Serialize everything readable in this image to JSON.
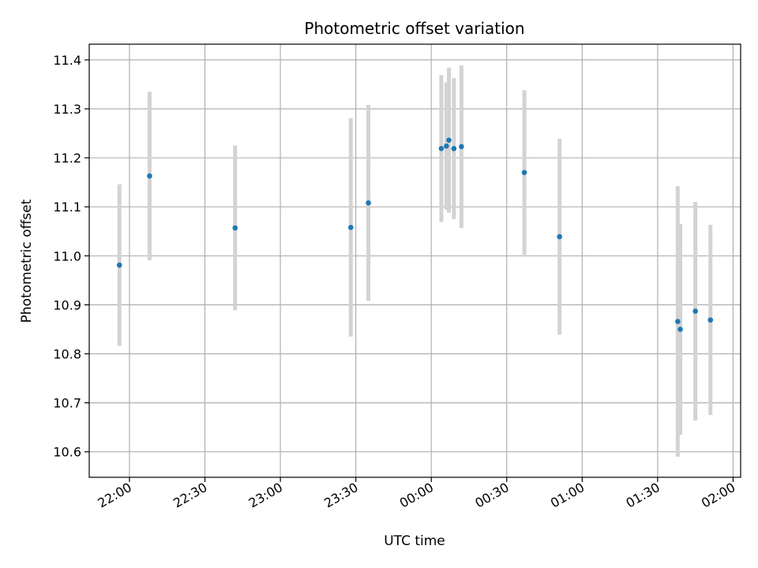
{
  "chart_data": {
    "type": "scatter",
    "title": "Photometric offset variation",
    "xlabel": "UTC time",
    "ylabel": "Photometric offset",
    "x_axis_type": "time",
    "xlim": [
      "21:44",
      "02:03"
    ],
    "ylim": [
      10.548,
      11.432
    ],
    "x_ticks": [
      "22:00",
      "22:30",
      "23:00",
      "23:30",
      "00:00",
      "00:30",
      "01:00",
      "01:30",
      "02:00"
    ],
    "y_ticks": [
      "10.6",
      "10.7",
      "10.8",
      "10.9",
      "11.0",
      "11.1",
      "11.2",
      "11.3",
      "11.4"
    ],
    "grid": true,
    "point_color": "#1f77b4",
    "errorbar_color": "#d3d3d3",
    "points": [
      {
        "time": "21:56",
        "y": 10.981,
        "yerr": 0.165
      },
      {
        "time": "22:08",
        "y": 11.163,
        "yerr": 0.172
      },
      {
        "time": "22:42",
        "y": 11.057,
        "yerr": 0.168
      },
      {
        "time": "23:28",
        "y": 11.058,
        "yerr": 0.223
      },
      {
        "time": "23:35",
        "y": 11.108,
        "yerr": 0.2
      },
      {
        "time": "00:04",
        "y": 11.219,
        "yerr": 0.15
      },
      {
        "time": "00:06",
        "y": 11.224,
        "yerr": 0.13
      },
      {
        "time": "00:07",
        "y": 11.236,
        "yerr": 0.148
      },
      {
        "time": "00:09",
        "y": 11.219,
        "yerr": 0.144
      },
      {
        "time": "00:12",
        "y": 11.223,
        "yerr": 0.166
      },
      {
        "time": "00:37",
        "y": 11.17,
        "yerr": 0.168
      },
      {
        "time": "00:51",
        "y": 11.039,
        "yerr": 0.2
      },
      {
        "time": "01:38",
        "y": 10.866,
        "yerr": 0.276
      },
      {
        "time": "01:39",
        "y": 10.85,
        "yerr": 0.215
      },
      {
        "time": "01:45",
        "y": 10.887,
        "yerr": 0.223
      },
      {
        "time": "01:51",
        "y": 10.869,
        "yerr": 0.194
      }
    ]
  }
}
